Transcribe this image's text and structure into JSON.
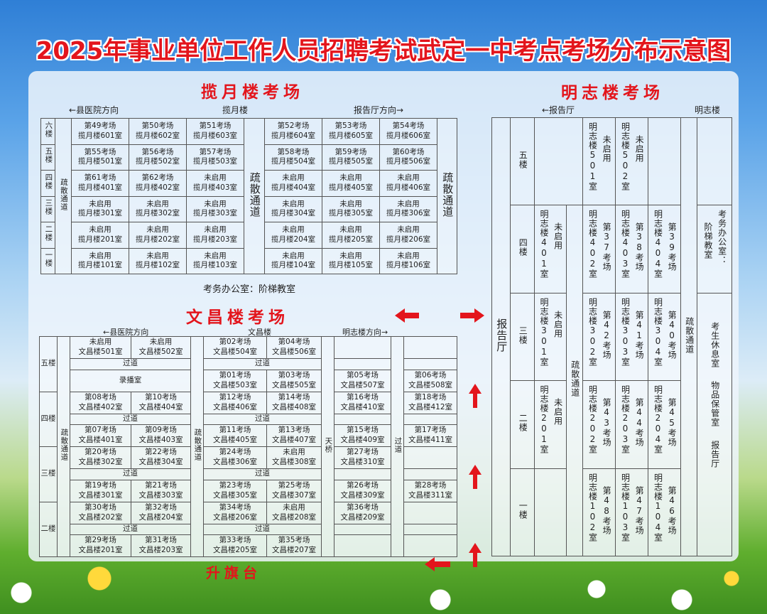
{
  "title": "2025年事业单位工作人员招聘考试武定一中考点考场分布示意图",
  "colors": {
    "title": "#e3151c",
    "arrow": "#e3151c"
  },
  "lanyue": {
    "section_title": "揽月楼考场",
    "header": {
      "left": "←县医院方向",
      "center": "揽月楼",
      "right": "报告厅方向→"
    },
    "aisle": "疏散通道",
    "note": "考务办公室：阶梯教室",
    "floors": [
      {
        "label": "六楼",
        "cells": [
          {
            "title": "第49考场",
            "room": "揽月楼601室"
          },
          {
            "title": "第50考场",
            "room": "揽月楼602室"
          },
          {
            "title": "第51考场",
            "room": "揽月楼603室"
          },
          {
            "title": "第52考场",
            "room": "揽月楼604室"
          },
          {
            "title": "第53考场",
            "room": "揽月楼605室"
          },
          {
            "title": "第54考场",
            "room": "揽月楼606室"
          }
        ]
      },
      {
        "label": "五楼",
        "cells": [
          {
            "title": "第55考场",
            "room": "揽月楼501室"
          },
          {
            "title": "第56考场",
            "room": "揽月楼502室"
          },
          {
            "title": "第57考场",
            "room": "揽月楼503室"
          },
          {
            "title": "第58考场",
            "room": "揽月楼504室"
          },
          {
            "title": "第59考场",
            "room": "揽月楼505室"
          },
          {
            "title": "第60考场",
            "room": "揽月楼506室"
          }
        ]
      },
      {
        "label": "四楼",
        "cells": [
          {
            "title": "第61考场",
            "room": "揽月楼401室"
          },
          {
            "title": "第62考场",
            "room": "揽月楼402室"
          },
          {
            "title": "未启用",
            "room": "揽月楼403室"
          },
          {
            "title": "未启用",
            "room": "揽月楼404室"
          },
          {
            "title": "未启用",
            "room": "揽月楼405室"
          },
          {
            "title": "未启用",
            "room": "揽月楼406室"
          }
        ]
      },
      {
        "label": "三楼",
        "cells": [
          {
            "title": "未启用",
            "room": "揽月楼301室"
          },
          {
            "title": "未启用",
            "room": "揽月楼302室"
          },
          {
            "title": "未启用",
            "room": "揽月楼303室"
          },
          {
            "title": "未启用",
            "room": "揽月楼304室"
          },
          {
            "title": "未启用",
            "room": "揽月楼305室"
          },
          {
            "title": "未启用",
            "room": "揽月楼306室"
          }
        ]
      },
      {
        "label": "二楼",
        "cells": [
          {
            "title": "未启用",
            "room": "揽月楼201室"
          },
          {
            "title": "未启用",
            "room": "揽月楼202室"
          },
          {
            "title": "未启用",
            "room": "揽月楼203室"
          },
          {
            "title": "未启用",
            "room": "揽月楼204室"
          },
          {
            "title": "未启用",
            "room": "揽月楼205室"
          },
          {
            "title": "未启用",
            "room": "揽月楼206室"
          }
        ]
      },
      {
        "label": "一楼",
        "cells": [
          {
            "title": "未启用",
            "room": "揽月楼101室"
          },
          {
            "title": "未启用",
            "room": "揽月楼102室"
          },
          {
            "title": "未启用",
            "room": "揽月楼103室"
          },
          {
            "title": "未启用",
            "room": "揽月楼104室"
          },
          {
            "title": "未启用",
            "room": "揽月楼105室"
          },
          {
            "title": "未启用",
            "room": "揽月楼106室"
          }
        ]
      }
    ]
  },
  "wenchang": {
    "section_title": "文昌楼考场",
    "header": {
      "left": "←县医院方向",
      "center": "文昌楼",
      "right": "明志楼方向→"
    },
    "aisle": "疏散通道",
    "bridge": "天桥",
    "passage": "过道",
    "floors": [
      "五楼",
      "四楼",
      "三楼",
      "二楼"
    ],
    "rows": [
      {
        "cells": [
          {
            "title": "未启用",
            "room": "文昌楼501室"
          },
          {
            "title": "未启用",
            "room": "文昌楼502室"
          },
          {
            "title": "第02考场",
            "room": "文昌楼504室"
          },
          {
            "title": "第04考场",
            "room": "文昌楼506室"
          },
          null,
          null
        ]
      },
      {
        "passage": true
      },
      {
        "merged": "录播室",
        "cells": [
          null,
          null,
          {
            "title": "第01考场",
            "room": "文昌楼503室"
          },
          {
            "title": "第03考场",
            "room": "文昌楼505室"
          },
          {
            "title": "第05考场",
            "room": "文昌楼507室"
          },
          {
            "title": "第06考场",
            "room": "文昌楼508室"
          }
        ]
      },
      {
        "cells": [
          {
            "title": "第08考场",
            "room": "文昌楼402室"
          },
          {
            "title": "第10考场",
            "room": "文昌楼404室"
          },
          {
            "title": "第12考场",
            "room": "文昌楼406室"
          },
          {
            "title": "第14考场",
            "room": "文昌楼408室"
          },
          {
            "title": "第16考场",
            "room": "文昌楼410室"
          },
          {
            "title": "第18考场",
            "room": "文昌楼412室"
          }
        ]
      },
      {
        "passage": true
      },
      {
        "cells": [
          {
            "title": "第07考场",
            "room": "文昌楼401室"
          },
          {
            "title": "第09考场",
            "room": "文昌楼403室"
          },
          {
            "title": "第11考场",
            "room": "文昌楼405室"
          },
          {
            "title": "第13考场",
            "room": "文昌楼407室"
          },
          {
            "title": "第15考场",
            "room": "文昌楼409室"
          },
          {
            "title": "第17考场",
            "room": "文昌楼411室"
          }
        ]
      },
      {
        "cells": [
          {
            "title": "第20考场",
            "room": "文昌楼302室"
          },
          {
            "title": "第22考场",
            "room": "文昌楼304室"
          },
          {
            "title": "第24考场",
            "room": "文昌楼306室"
          },
          {
            "title": "未启用",
            "room": "文昌楼308室"
          },
          {
            "title": "第27考场",
            "room": "文昌楼310室"
          },
          null
        ]
      },
      {
        "passage": true
      },
      {
        "cells": [
          {
            "title": "第19考场",
            "room": "文昌楼301室"
          },
          {
            "title": "第21考场",
            "room": "文昌楼303室"
          },
          {
            "title": "第23考场",
            "room": "文昌楼305室"
          },
          {
            "title": "第25考场",
            "room": "文昌楼307室"
          },
          {
            "title": "第26考场",
            "room": "文昌楼309室"
          },
          {
            "title": "第28考场",
            "room": "文昌楼311室"
          }
        ]
      },
      {
        "cells": [
          {
            "title": "第30考场",
            "room": "文昌楼202室"
          },
          {
            "title": "第32考场",
            "room": "文昌楼204室"
          },
          {
            "title": "第34考场",
            "room": "文昌楼206室"
          },
          {
            "title": "未启用",
            "room": "文昌楼208室"
          },
          {
            "title": "第36考场",
            "room": "文昌楼209室"
          },
          null
        ]
      },
      {
        "passage": true
      },
      {
        "cells": [
          {
            "title": "第29考场",
            "room": "文昌楼201室"
          },
          {
            "title": "第31考场",
            "room": "文昌楼203室"
          },
          {
            "title": "第33考场",
            "room": "文昌楼205室"
          },
          {
            "title": "第35考场",
            "room": "文昌楼207室"
          },
          null,
          null
        ]
      }
    ]
  },
  "mingzhi": {
    "section_title": "明志楼考场",
    "header": {
      "left": "←报告厅",
      "right": "明志楼"
    },
    "hall": "报告厅",
    "aisle": "疏散通道",
    "office": {
      "line1": "考务办公室：",
      "line2": "阶梯教室"
    },
    "lounge": [
      "考生休息室",
      "物品保管室",
      "报告厅"
    ],
    "floors": [
      {
        "label": "五楼",
        "cells": [
          null,
          {
            "room": "明志楼501室",
            "status": "未启用"
          },
          {
            "room": "明志楼502室",
            "status": "未启用"
          },
          null
        ]
      },
      {
        "label": "四楼",
        "cells": [
          {
            "room": "明志楼401室",
            "status": "未启用"
          },
          {
            "room": "明志楼402室",
            "status": "第37考场"
          },
          {
            "room": "明志楼403室",
            "status": "第38考场"
          },
          {
            "room": "明志楼404室",
            "status": "第39考场"
          }
        ]
      },
      {
        "label": "三楼",
        "cells": [
          {
            "room": "明志楼301室",
            "status": "未启用"
          },
          {
            "room": "明志楼302室",
            "status": "第42考场"
          },
          {
            "room": "明志楼303室",
            "status": "第41考场"
          },
          {
            "room": "明志楼304室",
            "status": "第40考场"
          }
        ]
      },
      {
        "label": "二楼",
        "cells": [
          {
            "room": "明志楼201室",
            "status": "未启用"
          },
          {
            "room": "明志楼202室",
            "status": "第43考场"
          },
          {
            "room": "明志楼203室",
            "status": "第44考场"
          },
          {
            "room": "明志楼204室",
            "status": "第45考场"
          }
        ]
      },
      {
        "label": "一楼",
        "cells": [
          null,
          {
            "room": "明志楼102室",
            "status": "第48考场"
          },
          {
            "room": "明志楼103室",
            "status": "第47考场"
          },
          {
            "room": "明志楼104室",
            "status": "第46考场"
          }
        ]
      }
    ]
  },
  "flag_platform": "升旗台"
}
